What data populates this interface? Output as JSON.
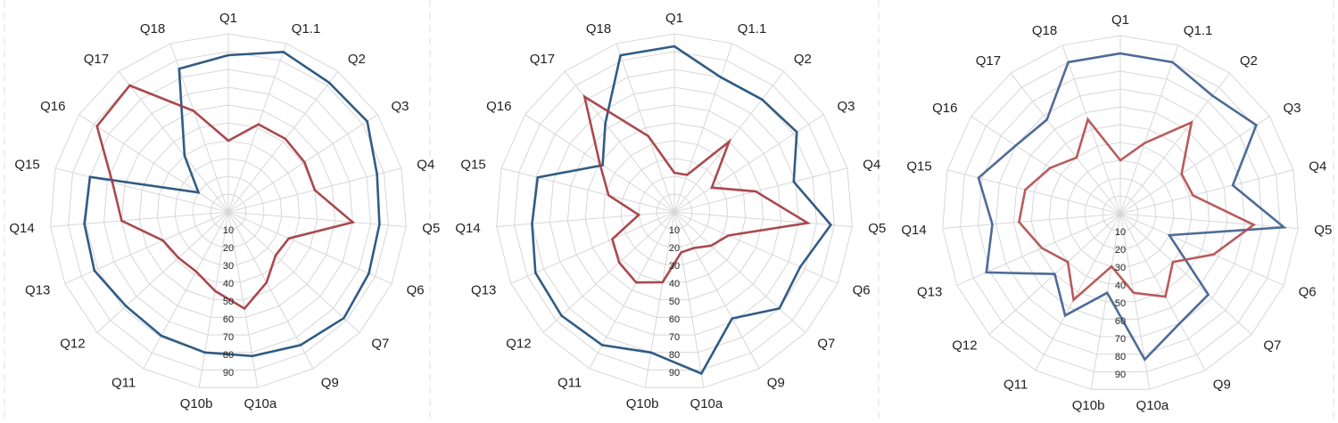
{
  "chart_data": [
    {
      "type": "radar",
      "axes": [
        "Q1",
        "Q1.1",
        "Q2",
        "Q3",
        "Q4",
        "Q5",
        "Q6",
        "Q7",
        "Q9",
        "Q10a",
        "Q10b",
        "Q11",
        "Q12",
        "Q13",
        "Q14",
        "Q15",
        "Q16",
        "Q17",
        "Q18"
      ],
      "ticks": [
        "10",
        "20",
        "30",
        "40",
        "50",
        "60",
        "70",
        "80",
        "90"
      ],
      "rlim": [
        0,
        100
      ],
      "grid": true,
      "series": [
        {
          "color": "#1f4e79",
          "values": [
            88,
            95,
            92,
            93,
            86,
            85,
            86,
            88,
            85,
            82,
            80,
            79,
            78,
            82,
            81,
            80,
            20,
            40,
            85
          ]
        },
        {
          "color": "#a33a40",
          "values": [
            40,
            52,
            52,
            51,
            50,
            70,
            37,
            36,
            45,
            55,
            45,
            38,
            38,
            40,
            60,
            67,
            88,
            90,
            60
          ]
        }
      ]
    },
    {
      "type": "radar",
      "axes": [
        "Q1",
        "Q1.1",
        "Q2",
        "Q3",
        "Q4",
        "Q5",
        "Q6",
        "Q7",
        "Q9",
        "Q10a",
        "Q10b",
        "Q11",
        "Q12",
        "Q13",
        "Q14",
        "Q15",
        "Q16",
        "Q17",
        "Q18"
      ],
      "ticks": [
        "10",
        "20",
        "30",
        "40",
        "50",
        "60",
        "70",
        "80",
        "90"
      ],
      "rlim": [
        0,
        100
      ],
      "grid": true,
      "series": [
        {
          "color": "#1f4e79",
          "values": [
            93,
            80,
            80,
            82,
            69,
            88,
            77,
            80,
            68,
            92,
            80,
            85,
            86,
            85,
            80,
            79,
            48,
            63,
            93
          ]
        },
        {
          "color": "#a33a40",
          "values": [
            22,
            22,
            50,
            25,
            47,
            75,
            33,
            28,
            23,
            23,
            40,
            45,
            42,
            38,
            20,
            38,
            50,
            82,
            45
          ]
        }
      ]
    },
    {
      "type": "radar",
      "axes": [
        "Q1",
        "Q1.1",
        "Q2",
        "Q3",
        "Q4",
        "Q5",
        "Q6",
        "Q7",
        "Q9",
        "Q10a",
        "Q10b",
        "Q11",
        "Q12",
        "Q13",
        "Q14",
        "Q15",
        "Q16",
        "Q17",
        "Q18"
      ],
      "ticks": [
        "10",
        "20",
        "30",
        "40",
        "50",
        "60",
        "70",
        "80",
        "90"
      ],
      "rlim": [
        0,
        100
      ],
      "grid": true,
      "series": [
        {
          "color": "#3f5f8f",
          "values": [
            90,
            90,
            84,
            91,
            65,
            92,
            30,
            67,
            70,
            83,
            45,
            65,
            50,
            82,
            72,
            82,
            70,
            67,
            90
          ]
        },
        {
          "color": "#b34d4d",
          "values": [
            30,
            42,
            65,
            41,
            42,
            75,
            57,
            40,
            53,
            45,
            30,
            55,
            40,
            48,
            57,
            55,
            47,
            40,
            56
          ]
        }
      ]
    }
  ]
}
